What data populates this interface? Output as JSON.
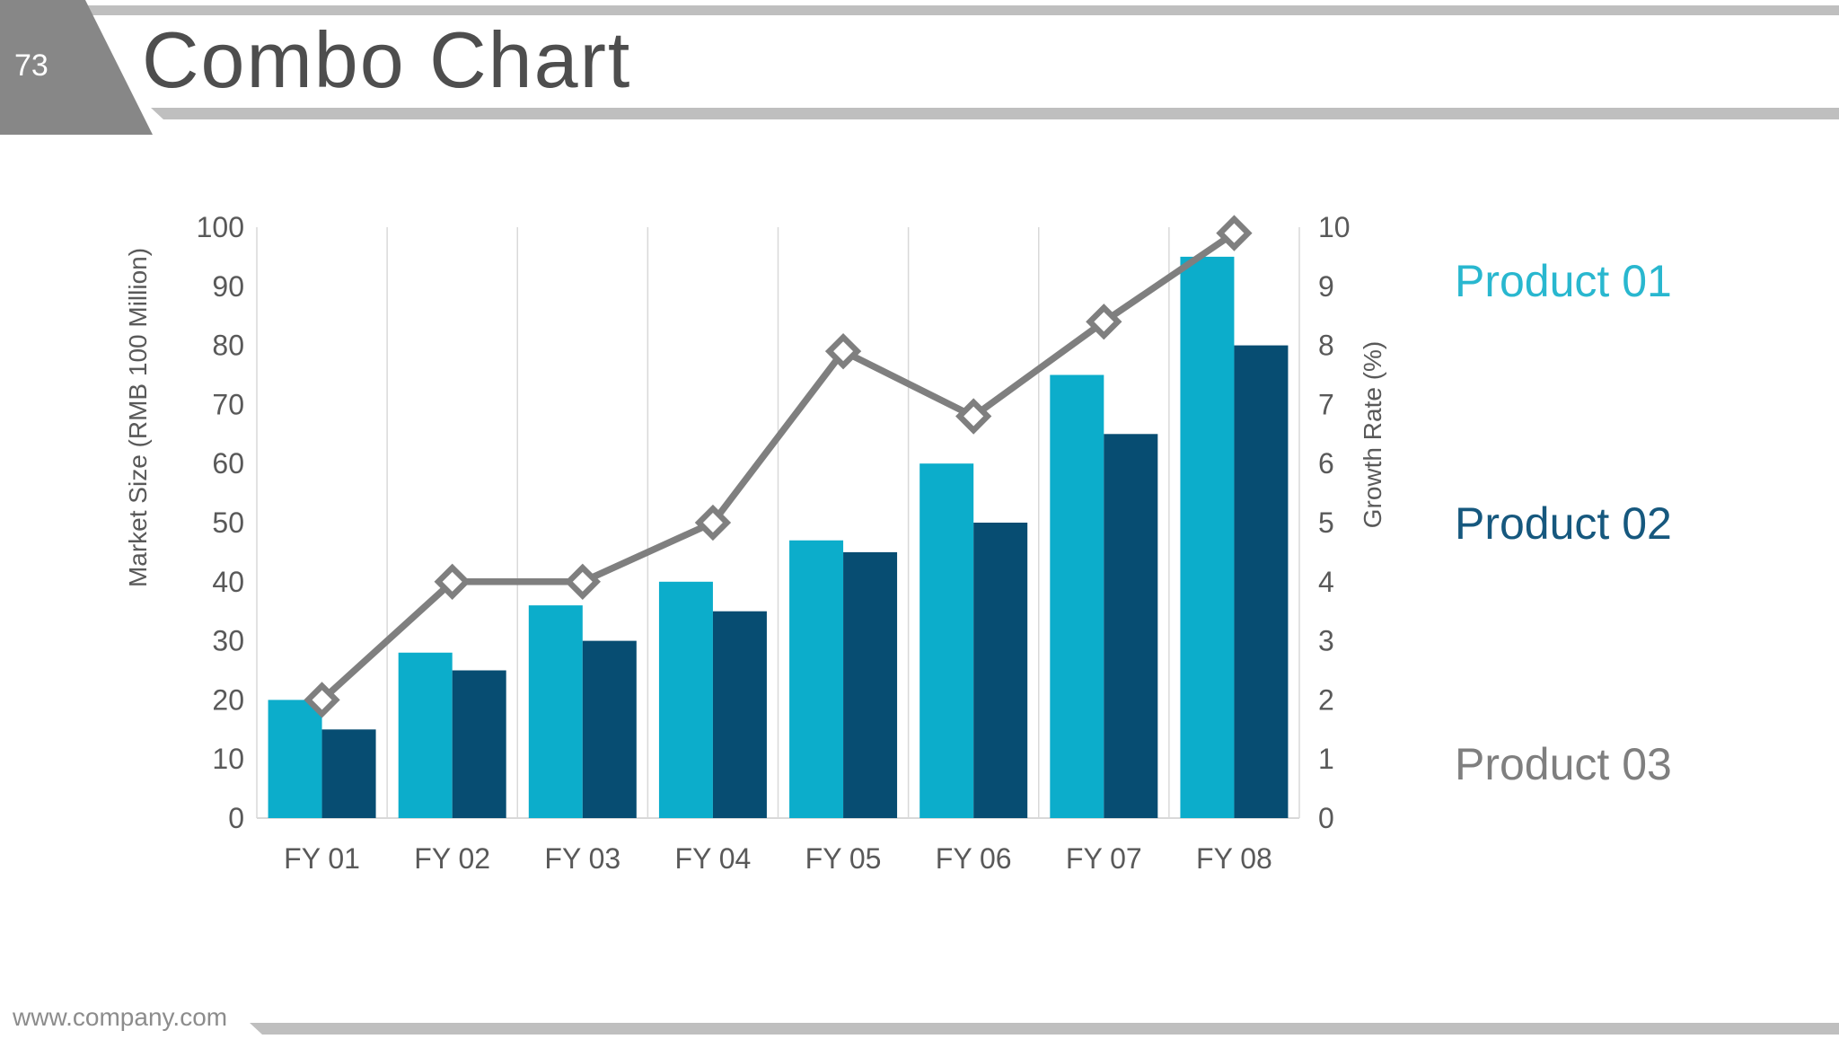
{
  "slide": {
    "page_number": "73",
    "title": "Combo Chart",
    "footer": "www.company.com"
  },
  "legend": [
    {
      "label": "Product 01",
      "color": "#29B7CF"
    },
    {
      "label": "Product 02",
      "color": "#16587E"
    },
    {
      "label": "Product 03",
      "color": "#7F7F7F"
    }
  ],
  "chart_data": {
    "type": "combo (grouped bar + line)",
    "categories": [
      "FY 01",
      "FY 02",
      "FY 03",
      "FY 04",
      "FY 05",
      "FY 06",
      "FY 07",
      "FY 08"
    ],
    "series": [
      {
        "name": "Product 01",
        "type": "bar",
        "axis": "left",
        "color": "#0CADCB",
        "values": [
          20,
          28,
          36,
          40,
          47,
          60,
          75,
          95
        ]
      },
      {
        "name": "Product 02",
        "type": "bar",
        "axis": "left",
        "color": "#074D72",
        "values": [
          15,
          25,
          30,
          35,
          45,
          50,
          65,
          80
        ]
      },
      {
        "name": "Product 03",
        "type": "line",
        "axis": "right",
        "color": "#7F7F7F",
        "marker": "diamond",
        "values": [
          2,
          4,
          4,
          5,
          7.9,
          6.8,
          8.4,
          9.9
        ]
      }
    ],
    "left_axis": {
      "title": "Market Size (RMB 100 Million)",
      "min": 0,
      "max": 100,
      "step": 10
    },
    "right_axis": {
      "title": "Growth Rate (%)",
      "min": 0,
      "max": 10,
      "step": 1
    },
    "grid": "vertical category separators only",
    "gridline_color": "#D9D9D9",
    "tick_label_color": "#595959",
    "legend_position": "right"
  }
}
